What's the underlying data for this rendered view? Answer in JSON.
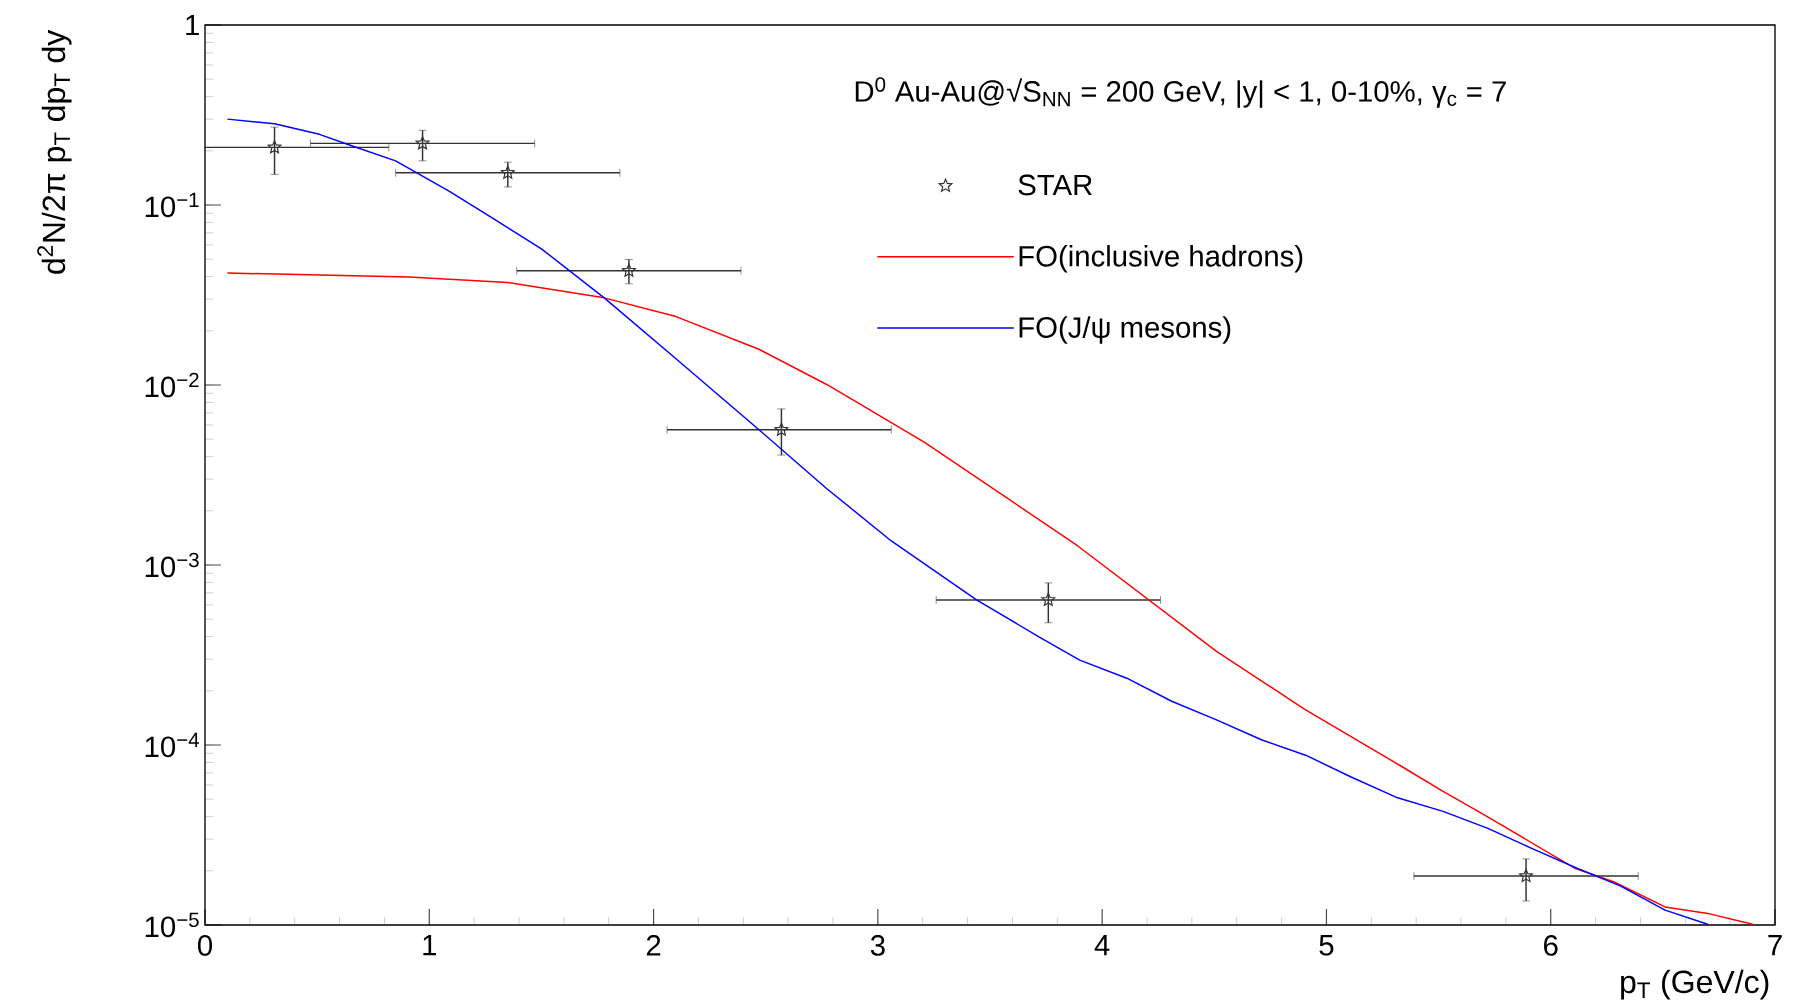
{
  "chart_data": {
    "type": "line",
    "xlabel": "p$_{T}$ (GeV/c)",
    "ylabel": "d$^{2}$N/2π p$_{T}$ dp$_{T}$ dy",
    "annotations": [
      "D$^{0}$ Au-Au@√S$_{NN}$ = 200 GeV, |y| < 1, 0-10%, γ$_{c}$ = 7"
    ],
    "log": "y",
    "legend": "top right",
    "grid": false,
    "xlim": [
      0,
      7
    ],
    "xticks": [
      0,
      1,
      2,
      3,
      4,
      5,
      6,
      7
    ],
    "ylim": [
      1e-05,
      1
    ],
    "yticks": [
      {
        "value": 1e-05,
        "label": "10$^{−5}$"
      },
      {
        "value": 0.0001,
        "label": "10$^{−4}$"
      },
      {
        "value": 0.001,
        "label": "10$^{−3}$"
      },
      {
        "value": 0.01,
        "label": "10$^{−2}$"
      },
      {
        "value": 0.1,
        "label": "10$^{−1}$"
      },
      1
    ],
    "series": [
      {
        "name": "STAR",
        "type": "scatter",
        "marker": "star",
        "color": "#333333",
        "x": [
          0.31,
          0.97,
          1.35,
          1.89,
          2.57,
          3.76,
          5.89
        ],
        "values": [
          0.209,
          0.22,
          0.151,
          0.0431,
          0.00564,
          0.00064,
          1.87e-05
        ],
        "errors": [
          [
            0.148,
            0.271
          ],
          [
            0.176,
            0.26
          ],
          [
            0.126,
            0.173
          ],
          [
            0.0365,
            0.0498
          ],
          [
            0.00408,
            0.00737
          ],
          [
            0.000478,
            0.000796
          ],
          [
            1.36e-05,
            2.33e-05
          ]
        ],
        "xerrors": [
          [
            0.0,
            0.82
          ],
          [
            0.47,
            1.47
          ],
          [
            0.85,
            1.85
          ],
          [
            1.39,
            2.39
          ],
          [
            2.06,
            3.06
          ],
          [
            3.26,
            4.26
          ],
          [
            5.39,
            6.39
          ]
        ]
      },
      {
        "name": "FO(inclusive hadrons)",
        "marker": "none",
        "color": "#ff0000",
        "x": [
          0.1,
          0.91,
          1.35,
          1.78,
          2.1,
          2.47,
          2.77,
          3.06,
          3.21,
          3.89,
          4.51,
          4.9,
          5.33,
          5.52,
          5.7,
          6.11,
          6.28,
          6.51,
          6.7,
          6.9
        ],
        "values": [
          0.0419,
          0.0398,
          0.0371,
          0.0305,
          0.024,
          0.0158,
          0.0101,
          0.00619,
          0.00479,
          0.00128,
          0.000331,
          0.000159,
          7.67e-05,
          5.52e-05,
          4.12e-05,
          2.06e-05,
          1.74e-05,
          1.26e-05,
          1.16e-05,
          1.01e-05
        ]
      },
      {
        "name": "FO(J/ψ mesons)",
        "marker": "none",
        "color": "#0000ff",
        "x": [
          0.1,
          0.31,
          0.51,
          0.66,
          0.85,
          1.09,
          1.3,
          1.5,
          1.78,
          2.1,
          2.47,
          2.77,
          3.06,
          3.44,
          3.72,
          3.9,
          4.11,
          4.31,
          4.51,
          4.71,
          4.91,
          5.11,
          5.31,
          5.52,
          5.72,
          5.92,
          6.12,
          6.31,
          6.51,
          6.7
        ],
        "values": [
          0.3,
          0.283,
          0.247,
          0.212,
          0.176,
          0.119,
          0.0819,
          0.0571,
          0.0305,
          0.014,
          0.00564,
          0.00267,
          0.00136,
          0.00064,
          0.000398,
          0.000296,
          0.000235,
          0.000175,
          0.000138,
          0.000107,
          8.75e-05,
          6.64e-05,
          5.13e-05,
          4.28e-05,
          3.44e-05,
          2.65e-05,
          2.06e-05,
          1.65e-05,
          1.21e-05,
          1.01e-05
        ]
      }
    ]
  }
}
